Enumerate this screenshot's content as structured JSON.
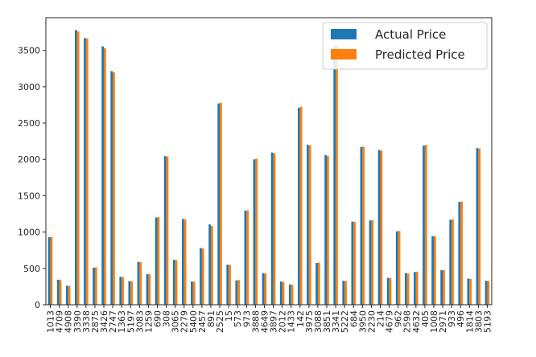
{
  "chart_data": {
    "type": "bar",
    "title": "",
    "xlabel": "",
    "ylabel": "",
    "ylim": [
      0,
      3950
    ],
    "yticks": [
      0,
      500,
      1000,
      1500,
      2000,
      2500,
      3000,
      3500
    ],
    "categories": [
      "1013",
      "4709",
      "4908",
      "3390",
      "3338",
      "2875",
      "3426",
      "2747",
      "1363",
      "5197",
      "3083",
      "1259",
      "690",
      "308",
      "3065",
      "2279",
      "5400",
      "2457",
      "891",
      "2525",
      "15",
      "573",
      "973",
      "3888",
      "4649",
      "3897",
      "2012",
      "1433",
      "142",
      "3975",
      "3088",
      "3851",
      "3341",
      "5222",
      "684",
      "3950",
      "2230",
      "214",
      "4679",
      "962",
      "2598",
      "4632",
      "405",
      "1008",
      "2971",
      "933",
      "496",
      "1814",
      "3803",
      "5193"
    ],
    "series": [
      {
        "name": "Actual Price",
        "color": "#1f77b4",
        "values": [
          930,
          345,
          262,
          3780,
          3670,
          510,
          3555,
          3215,
          385,
          325,
          590,
          420,
          1200,
          2045,
          618,
          1180,
          320,
          780,
          1105,
          2770,
          550,
          335,
          1295,
          2000,
          435,
          2095,
          320,
          280,
          2710,
          2200,
          575,
          2060,
          3560,
          330,
          1145,
          2170,
          1160,
          2130,
          370,
          1010,
          435,
          450,
          2190,
          945,
          475,
          1170,
          1415,
          360,
          2155,
          330
        ]
      },
      {
        "name": "Predicted Price",
        "color": "#ff7f0e",
        "values": [
          935,
          340,
          258,
          3760,
          3665,
          515,
          3530,
          3200,
          380,
          322,
          585,
          418,
          1205,
          2040,
          612,
          1175,
          318,
          775,
          1085,
          2780,
          548,
          340,
          1300,
          2010,
          430,
          2085,
          315,
          275,
          2725,
          2195,
          580,
          2045,
          3575,
          328,
          1140,
          2175,
          1165,
          2120,
          365,
          1015,
          430,
          455,
          2200,
          940,
          478,
          1175,
          1420,
          355,
          2150,
          328
        ]
      }
    ],
    "legend": {
      "position": "top-right"
    },
    "grid": false
  }
}
